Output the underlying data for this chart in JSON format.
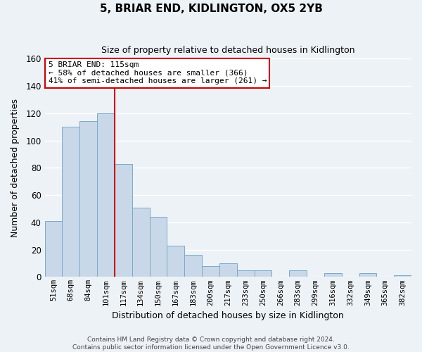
{
  "title": "5, BRIAR END, KIDLINGTON, OX5 2YB",
  "subtitle": "Size of property relative to detached houses in Kidlington",
  "xlabel": "Distribution of detached houses by size in Kidlington",
  "ylabel": "Number of detached properties",
  "bar_labels": [
    "51sqm",
    "68sqm",
    "84sqm",
    "101sqm",
    "117sqm",
    "134sqm",
    "150sqm",
    "167sqm",
    "183sqm",
    "200sqm",
    "217sqm",
    "233sqm",
    "250sqm",
    "266sqm",
    "283sqm",
    "299sqm",
    "316sqm",
    "332sqm",
    "349sqm",
    "365sqm",
    "382sqm"
  ],
  "bar_values": [
    41,
    110,
    114,
    120,
    83,
    51,
    44,
    23,
    16,
    8,
    10,
    5,
    5,
    0,
    5,
    0,
    3,
    0,
    3,
    0,
    1
  ],
  "bar_color": "#c8d8e8",
  "bar_edge_color": "#7aaac8",
  "reference_line_x": 3.5,
  "reference_line_color": "#cc0000",
  "ylim": [
    0,
    160
  ],
  "yticks": [
    0,
    20,
    40,
    60,
    80,
    100,
    120,
    140,
    160
  ],
  "annotation_title": "5 BRIAR END: 115sqm",
  "annotation_line1": "← 58% of detached houses are smaller (366)",
  "annotation_line2": "41% of semi-detached houses are larger (261) →",
  "annotation_box_color": "#ffffff",
  "annotation_box_edge_color": "#cc0000",
  "footer_line1": "Contains HM Land Registry data © Crown copyright and database right 2024.",
  "footer_line2": "Contains public sector information licensed under the Open Government Licence v3.0.",
  "background_color": "#edf2f7",
  "grid_color": "#ffffff",
  "spine_color": "#cccccc"
}
